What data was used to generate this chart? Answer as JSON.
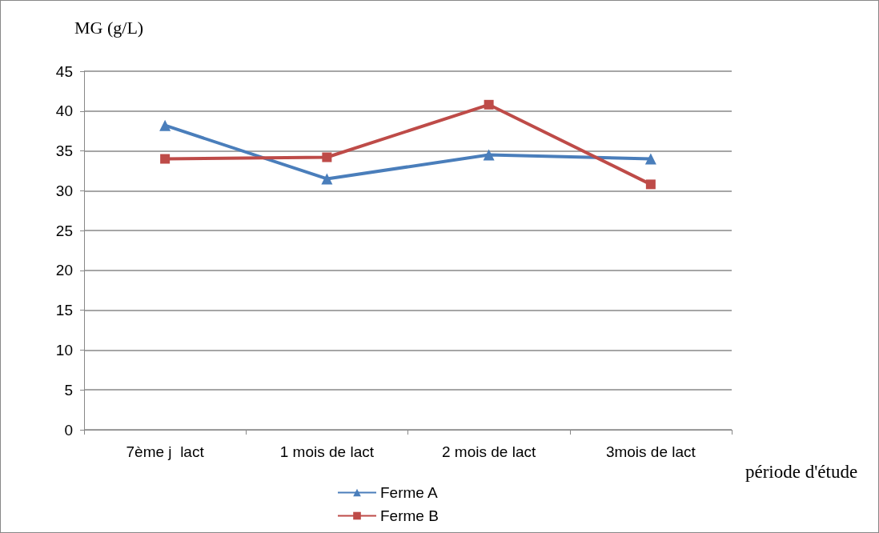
{
  "chart_data": {
    "type": "line",
    "ylabel": "MG (g/L)",
    "xlabel": "période d'étude",
    "categories": [
      "7ème j  lact",
      "1 mois de lact",
      "2 mois de lact",
      "3mois de lact"
    ],
    "series": [
      {
        "name": "Ferme A",
        "color": "#4a7ebb",
        "marker": "triangle",
        "values": [
          38.2,
          31.5,
          34.5,
          34.0
        ]
      },
      {
        "name": "Ferme B",
        "color": "#be4b48",
        "marker": "square",
        "values": [
          34.0,
          34.2,
          40.8,
          30.8
        ]
      }
    ],
    "ylim": [
      0,
      45
    ],
    "yticks": [
      0,
      5,
      10,
      15,
      20,
      25,
      30,
      35,
      40,
      45
    ],
    "grid": "y",
    "legend": "bottom",
    "line_style": "solid"
  }
}
